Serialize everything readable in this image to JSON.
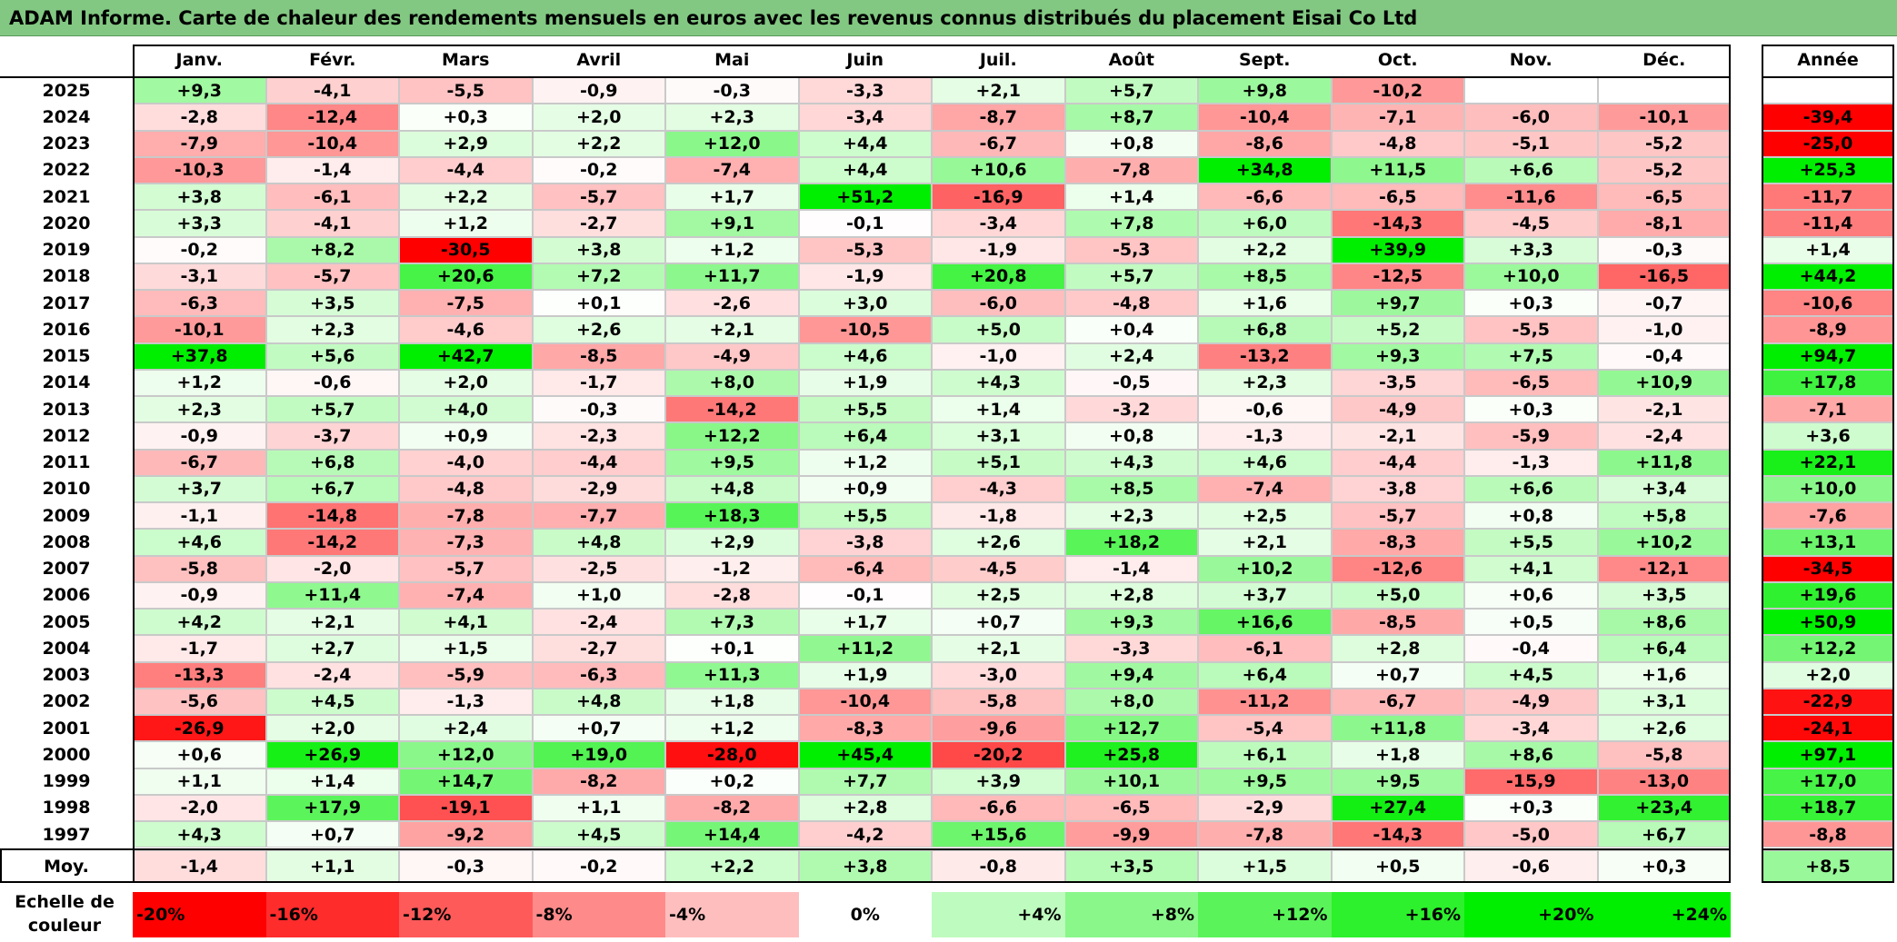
{
  "title": "ADAM Informe. Carte de chaleur des rendements mensuels en euros avec les revenus connus distribués du placement Eisai Co Ltd",
  "chart_data": {
    "type": "heatmap",
    "title": "ADAM Informe. Carte de chaleur des rendements mensuels en euros avec les revenus connus distribués du placement Eisai Co Ltd",
    "columns": [
      "Janv.",
      "Févr.",
      "Mars",
      "Avril",
      "Mai",
      "Juin",
      "Juil.",
      "Août",
      "Sept.",
      "Oct.",
      "Nov.",
      "Déc."
    ],
    "year_header": "Année",
    "rows": [
      {
        "year": "2025",
        "values": [
          "+9,3",
          "-4,1",
          "-5,5",
          "-0,9",
          "-0,3",
          "-3,3",
          "+2,1",
          "+5,7",
          "+9,8",
          "-10,2",
          "",
          ""
        ],
        "annual": ""
      },
      {
        "year": "2024",
        "values": [
          "-2,8",
          "-12,4",
          "+0,3",
          "+2,0",
          "+2,3",
          "-3,4",
          "-8,7",
          "+8,7",
          "-10,4",
          "-7,1",
          "-6,0",
          "-10,1"
        ],
        "annual": "-39,4"
      },
      {
        "year": "2023",
        "values": [
          "-7,9",
          "-10,4",
          "+2,9",
          "+2,2",
          "+12,0",
          "+4,4",
          "-6,7",
          "+0,8",
          "-8,6",
          "-4,8",
          "-5,1",
          "-5,2"
        ],
        "annual": "-25,0"
      },
      {
        "year": "2022",
        "values": [
          "-10,3",
          "-1,4",
          "-4,4",
          "-0,2",
          "-7,4",
          "+4,4",
          "+10,6",
          "-7,8",
          "+34,8",
          "+11,5",
          "+6,6",
          "-5,2"
        ],
        "annual": "+25,3"
      },
      {
        "year": "2021",
        "values": [
          "+3,8",
          "-6,1",
          "+2,2",
          "-5,7",
          "+1,7",
          "+51,2",
          "-16,9",
          "+1,4",
          "-6,6",
          "-6,5",
          "-11,6",
          "-6,5"
        ],
        "annual": "-11,7"
      },
      {
        "year": "2020",
        "values": [
          "+3,3",
          "-4,1",
          "+1,2",
          "-2,7",
          "+9,1",
          "-0,1",
          "-3,4",
          "+7,8",
          "+6,0",
          "-14,3",
          "-4,5",
          "-8,1"
        ],
        "annual": "-11,4"
      },
      {
        "year": "2019",
        "values": [
          "-0,2",
          "+8,2",
          "-30,5",
          "+3,8",
          "+1,2",
          "-5,3",
          "-1,9",
          "-5,3",
          "+2,2",
          "+39,9",
          "+3,3",
          "-0,3"
        ],
        "annual": "+1,4"
      },
      {
        "year": "2018",
        "values": [
          "-3,1",
          "-5,7",
          "+20,6",
          "+7,2",
          "+11,7",
          "-1,9",
          "+20,8",
          "+5,7",
          "+8,5",
          "-12,5",
          "+10,0",
          "-16,5"
        ],
        "annual": "+44,2"
      },
      {
        "year": "2017",
        "values": [
          "-6,3",
          "+3,5",
          "-7,5",
          "+0,1",
          "-2,6",
          "+3,0",
          "-6,0",
          "-4,8",
          "+1,6",
          "+9,7",
          "+0,3",
          "-0,7"
        ],
        "annual": "-10,6"
      },
      {
        "year": "2016",
        "values": [
          "-10,1",
          "+2,3",
          "-4,6",
          "+2,6",
          "+2,1",
          "-10,5",
          "+5,0",
          "+0,4",
          "+6,8",
          "+5,2",
          "-5,5",
          "-1,0"
        ],
        "annual": "-8,9"
      },
      {
        "year": "2015",
        "values": [
          "+37,8",
          "+5,6",
          "+42,7",
          "-8,5",
          "-4,9",
          "+4,6",
          "-1,0",
          "+2,4",
          "-13,2",
          "+9,3",
          "+7,5",
          "-0,4"
        ],
        "annual": "+94,7"
      },
      {
        "year": "2014",
        "values": [
          "+1,2",
          "-0,6",
          "+2,0",
          "-1,7",
          "+8,0",
          "+1,9",
          "+4,3",
          "-0,5",
          "+2,3",
          "-3,5",
          "-6,5",
          "+10,9"
        ],
        "annual": "+17,8"
      },
      {
        "year": "2013",
        "values": [
          "+2,3",
          "+5,7",
          "+4,0",
          "-0,3",
          "-14,2",
          "+5,5",
          "+1,4",
          "-3,2",
          "-0,6",
          "-4,9",
          "+0,3",
          "-2,1"
        ],
        "annual": "-7,1"
      },
      {
        "year": "2012",
        "values": [
          "-0,9",
          "-3,7",
          "+0,9",
          "-2,3",
          "+12,2",
          "+6,4",
          "+3,1",
          "+0,8",
          "-1,3",
          "-2,1",
          "-5,9",
          "-2,4"
        ],
        "annual": "+3,6"
      },
      {
        "year": "2011",
        "values": [
          "-6,7",
          "+6,8",
          "-4,0",
          "-4,4",
          "+9,5",
          "+1,2",
          "+5,1",
          "+4,3",
          "+4,6",
          "-4,4",
          "-1,3",
          "+11,8"
        ],
        "annual": "+22,1"
      },
      {
        "year": "2010",
        "values": [
          "+3,7",
          "+6,7",
          "-4,8",
          "-2,9",
          "+4,8",
          "+0,9",
          "-4,3",
          "+8,5",
          "-7,4",
          "-3,8",
          "+6,6",
          "+3,4"
        ],
        "annual": "+10,0"
      },
      {
        "year": "2009",
        "values": [
          "-1,1",
          "-14,8",
          "-7,8",
          "-7,7",
          "+18,3",
          "+5,5",
          "-1,8",
          "+2,3",
          "+2,5",
          "-5,7",
          "+0,8",
          "+5,8"
        ],
        "annual": "-7,6"
      },
      {
        "year": "2008",
        "values": [
          "+4,6",
          "-14,2",
          "-7,3",
          "+4,8",
          "+2,9",
          "-3,8",
          "+2,6",
          "+18,2",
          "+2,1",
          "-8,3",
          "+5,5",
          "+10,2"
        ],
        "annual": "+13,1"
      },
      {
        "year": "2007",
        "values": [
          "-5,8",
          "-2,0",
          "-5,7",
          "-2,5",
          "-1,2",
          "-6,4",
          "-4,5",
          "-1,4",
          "+10,2",
          "-12,6",
          "+4,1",
          "-12,1"
        ],
        "annual": "-34,5"
      },
      {
        "year": "2006",
        "values": [
          "-0,9",
          "+11,4",
          "-7,4",
          "+1,0",
          "-2,8",
          "-0,1",
          "+2,5",
          "+2,8",
          "+3,7",
          "+5,0",
          "+0,6",
          "+3,5"
        ],
        "annual": "+19,6"
      },
      {
        "year": "2005",
        "values": [
          "+4,2",
          "+2,1",
          "+4,1",
          "-2,4",
          "+7,3",
          "+1,7",
          "+0,7",
          "+9,3",
          "+16,6",
          "-8,5",
          "+0,5",
          "+8,6"
        ],
        "annual": "+50,9"
      },
      {
        "year": "2004",
        "values": [
          "-1,7",
          "+2,7",
          "+1,5",
          "-2,7",
          "+0,1",
          "+11,2",
          "+2,1",
          "-3,3",
          "-6,1",
          "+2,8",
          "-0,4",
          "+6,4"
        ],
        "annual": "+12,2"
      },
      {
        "year": "2003",
        "values": [
          "-13,3",
          "-2,4",
          "-5,9",
          "-6,3",
          "+11,3",
          "+1,9",
          "-3,0",
          "+9,4",
          "+6,4",
          "+0,7",
          "+4,5",
          "+1,6"
        ],
        "annual": "+2,0"
      },
      {
        "year": "2002",
        "values": [
          "-5,6",
          "+4,5",
          "-1,3",
          "+4,8",
          "+1,8",
          "-10,4",
          "-5,8",
          "+8,0",
          "-11,2",
          "-6,7",
          "-4,9",
          "+3,1"
        ],
        "annual": "-22,9"
      },
      {
        "year": "2001",
        "values": [
          "-26,9",
          "+2,0",
          "+2,4",
          "+0,7",
          "+1,2",
          "-8,3",
          "-9,6",
          "+12,7",
          "-5,4",
          "+11,8",
          "-3,4",
          "+2,6"
        ],
        "annual": "-24,1"
      },
      {
        "year": "2000",
        "values": [
          "+0,6",
          "+26,9",
          "+12,0",
          "+19,0",
          "-28,0",
          "+45,4",
          "-20,2",
          "+25,8",
          "+6,1",
          "+1,8",
          "+8,6",
          "-5,8"
        ],
        "annual": "+97,1"
      },
      {
        "year": "1999",
        "values": [
          "+1,1",
          "+1,4",
          "+14,7",
          "-8,2",
          "+0,2",
          "+7,7",
          "+3,9",
          "+10,1",
          "+9,5",
          "+9,5",
          "-15,9",
          "-13,0"
        ],
        "annual": "+17,0"
      },
      {
        "year": "1998",
        "values": [
          "-2,0",
          "+17,9",
          "-19,1",
          "+1,1",
          "-8,2",
          "+2,8",
          "-6,6",
          "-6,5",
          "-2,9",
          "+27,4",
          "+0,3",
          "+23,4"
        ],
        "annual": "+18,7"
      },
      {
        "year": "1997",
        "values": [
          "+4,3",
          "+0,7",
          "-9,2",
          "+4,5",
          "+14,4",
          "-4,2",
          "+15,6",
          "-9,9",
          "-7,8",
          "-14,3",
          "-5,0",
          "+6,7"
        ],
        "annual": "-8,8"
      }
    ],
    "average": {
      "label": "Moy.",
      "values": [
        "-1,4",
        "+1,1",
        "-0,3",
        "-0,2",
        "+2,2",
        "+3,8",
        "-0,8",
        "+3,5",
        "+1,5",
        "+0,5",
        "-0,6",
        "+0,3"
      ],
      "annual": "+8,5"
    },
    "color_scale": {
      "label": "Echelle de couleur",
      "steps": [
        "-20%",
        "-16%",
        "-12%",
        "-8%",
        "-4%",
        "0%",
        "+4%",
        "+8%",
        "+12%",
        "+16%",
        "+20%",
        "+24%"
      ],
      "negative_color": "#ff0000",
      "neutral_color": "#ffffff",
      "positive_color": "#00ee00"
    }
  }
}
